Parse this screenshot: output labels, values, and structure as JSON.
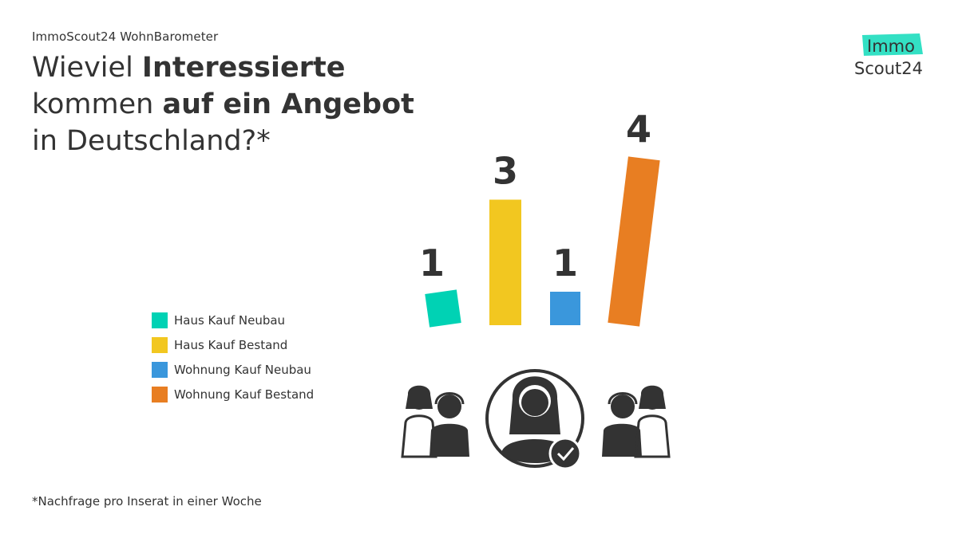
{
  "header": {
    "kicker": "ImmoScout24 WohnBarometer",
    "title_part1": "Wieviel ",
    "title_bold1": "Interessierte",
    "title_part2": "kommen ",
    "title_bold2": "auf ein Angebot",
    "title_part3": "in Deutschland?*"
  },
  "logo": {
    "line1": "Immo",
    "line2": "Scout24",
    "accent": "#33e0c4"
  },
  "footnote": "*Nachfrage pro Inserat in einer Woche",
  "chart_data": {
    "type": "bar",
    "categories": [
      "Haus Kauf Neubau",
      "Haus Kauf Bestand",
      "Wohnung Kauf Neubau",
      "Wohnung Kauf Bestand"
    ],
    "values": [
      1,
      3,
      1,
      4
    ],
    "value_labels": [
      "1",
      "3",
      "1",
      "4"
    ],
    "colors": [
      "#00d2b4",
      "#f2c720",
      "#3a97dc",
      "#e87e22"
    ],
    "ylim": [
      0,
      4
    ],
    "title": "",
    "xlabel": "",
    "ylabel": "",
    "legend": "left",
    "grid": false
  }
}
